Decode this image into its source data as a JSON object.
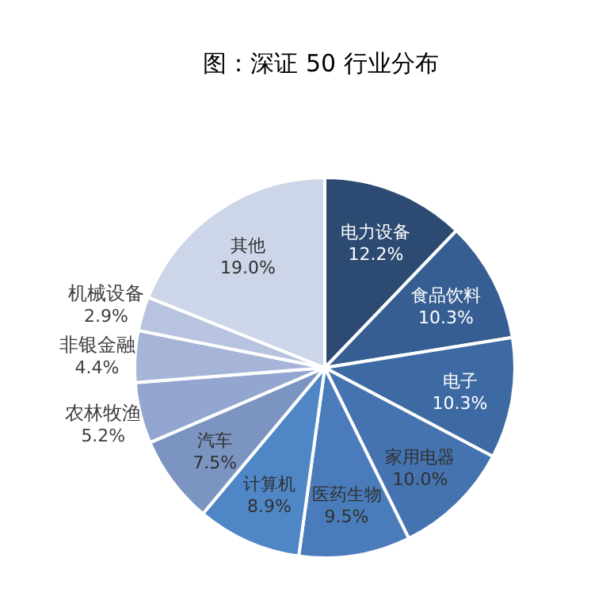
{
  "chart_data": {
    "type": "pie",
    "title": "图：深证 50 行业分布",
    "categories": [
      "电力设备",
      "食品饮料",
      "电子",
      "家用电器",
      "医药生物",
      "计算机",
      "汽车",
      "农林牧渔",
      "非银金融",
      "机械设备",
      "其他"
    ],
    "values": [
      12.2,
      10.3,
      10.3,
      10.0,
      9.5,
      8.9,
      7.5,
      5.2,
      4.4,
      2.9,
      19.0
    ],
    "colors": [
      "#2c4a72",
      "#375e92",
      "#3e6aa3",
      "#4573b0",
      "#4a7cbb",
      "#4f86c6",
      "#7b94c2",
      "#93a6cf",
      "#a6b5d7",
      "#b8c4df",
      "#cdd6e8"
    ],
    "value_labels": [
      "12.2%",
      "10.3%",
      "10.3%",
      "10.0%",
      "9.5%",
      "8.9%",
      "7.5%",
      "5.2%",
      "4.4%",
      "2.9%",
      "19.0%"
    ],
    "legend": false
  }
}
